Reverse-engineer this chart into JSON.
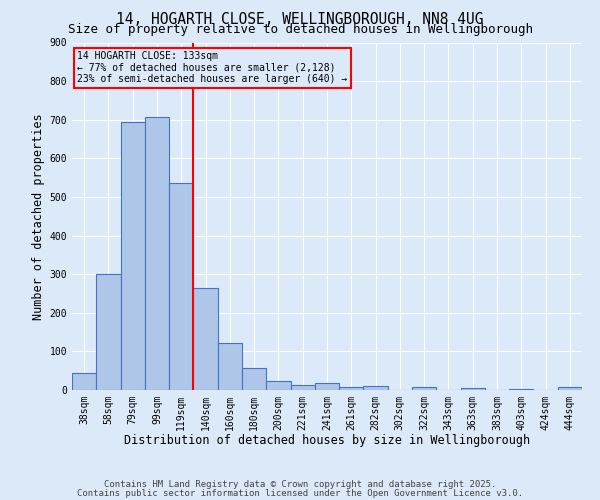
{
  "title_line1": "14, HOGARTH CLOSE, WELLINGBOROUGH, NN8 4UG",
  "title_line2": "Size of property relative to detached houses in Wellingborough",
  "xlabel": "Distribution of detached houses by size in Wellingborough",
  "ylabel": "Number of detached properties",
  "categories": [
    "38sqm",
    "58sqm",
    "79sqm",
    "99sqm",
    "119sqm",
    "140sqm",
    "160sqm",
    "180sqm",
    "200sqm",
    "221sqm",
    "241sqm",
    "261sqm",
    "282sqm",
    "302sqm",
    "322sqm",
    "343sqm",
    "363sqm",
    "383sqm",
    "403sqm",
    "424sqm",
    "444sqm"
  ],
  "values": [
    43,
    300,
    693,
    706,
    537,
    265,
    122,
    58,
    23,
    14,
    17,
    7,
    10,
    0,
    9,
    0,
    4,
    0,
    2,
    0,
    7
  ],
  "bar_color": "#aec6e8",
  "bar_edge_color": "#4472c4",
  "background_color": "#dce9f8",
  "grid_color": "#ffffff",
  "annotation_box_text": "14 HOGARTH CLOSE: 133sqm\n← 77% of detached houses are smaller (2,128)\n23% of semi-detached houses are larger (640) →",
  "vline_position": 4.5,
  "vline_color": "red",
  "annotation_box_color": "red",
  "ylim": [
    0,
    900
  ],
  "yticks": [
    0,
    100,
    200,
    300,
    400,
    500,
    600,
    700,
    800,
    900
  ],
  "footer_line1": "Contains HM Land Registry data © Crown copyright and database right 2025.",
  "footer_line2": "Contains public sector information licensed under the Open Government Licence v3.0.",
  "title_fontsize": 10.5,
  "subtitle_fontsize": 9,
  "axis_label_fontsize": 8.5,
  "tick_fontsize": 7,
  "footer_fontsize": 6.5,
  "annotation_fontsize": 7
}
